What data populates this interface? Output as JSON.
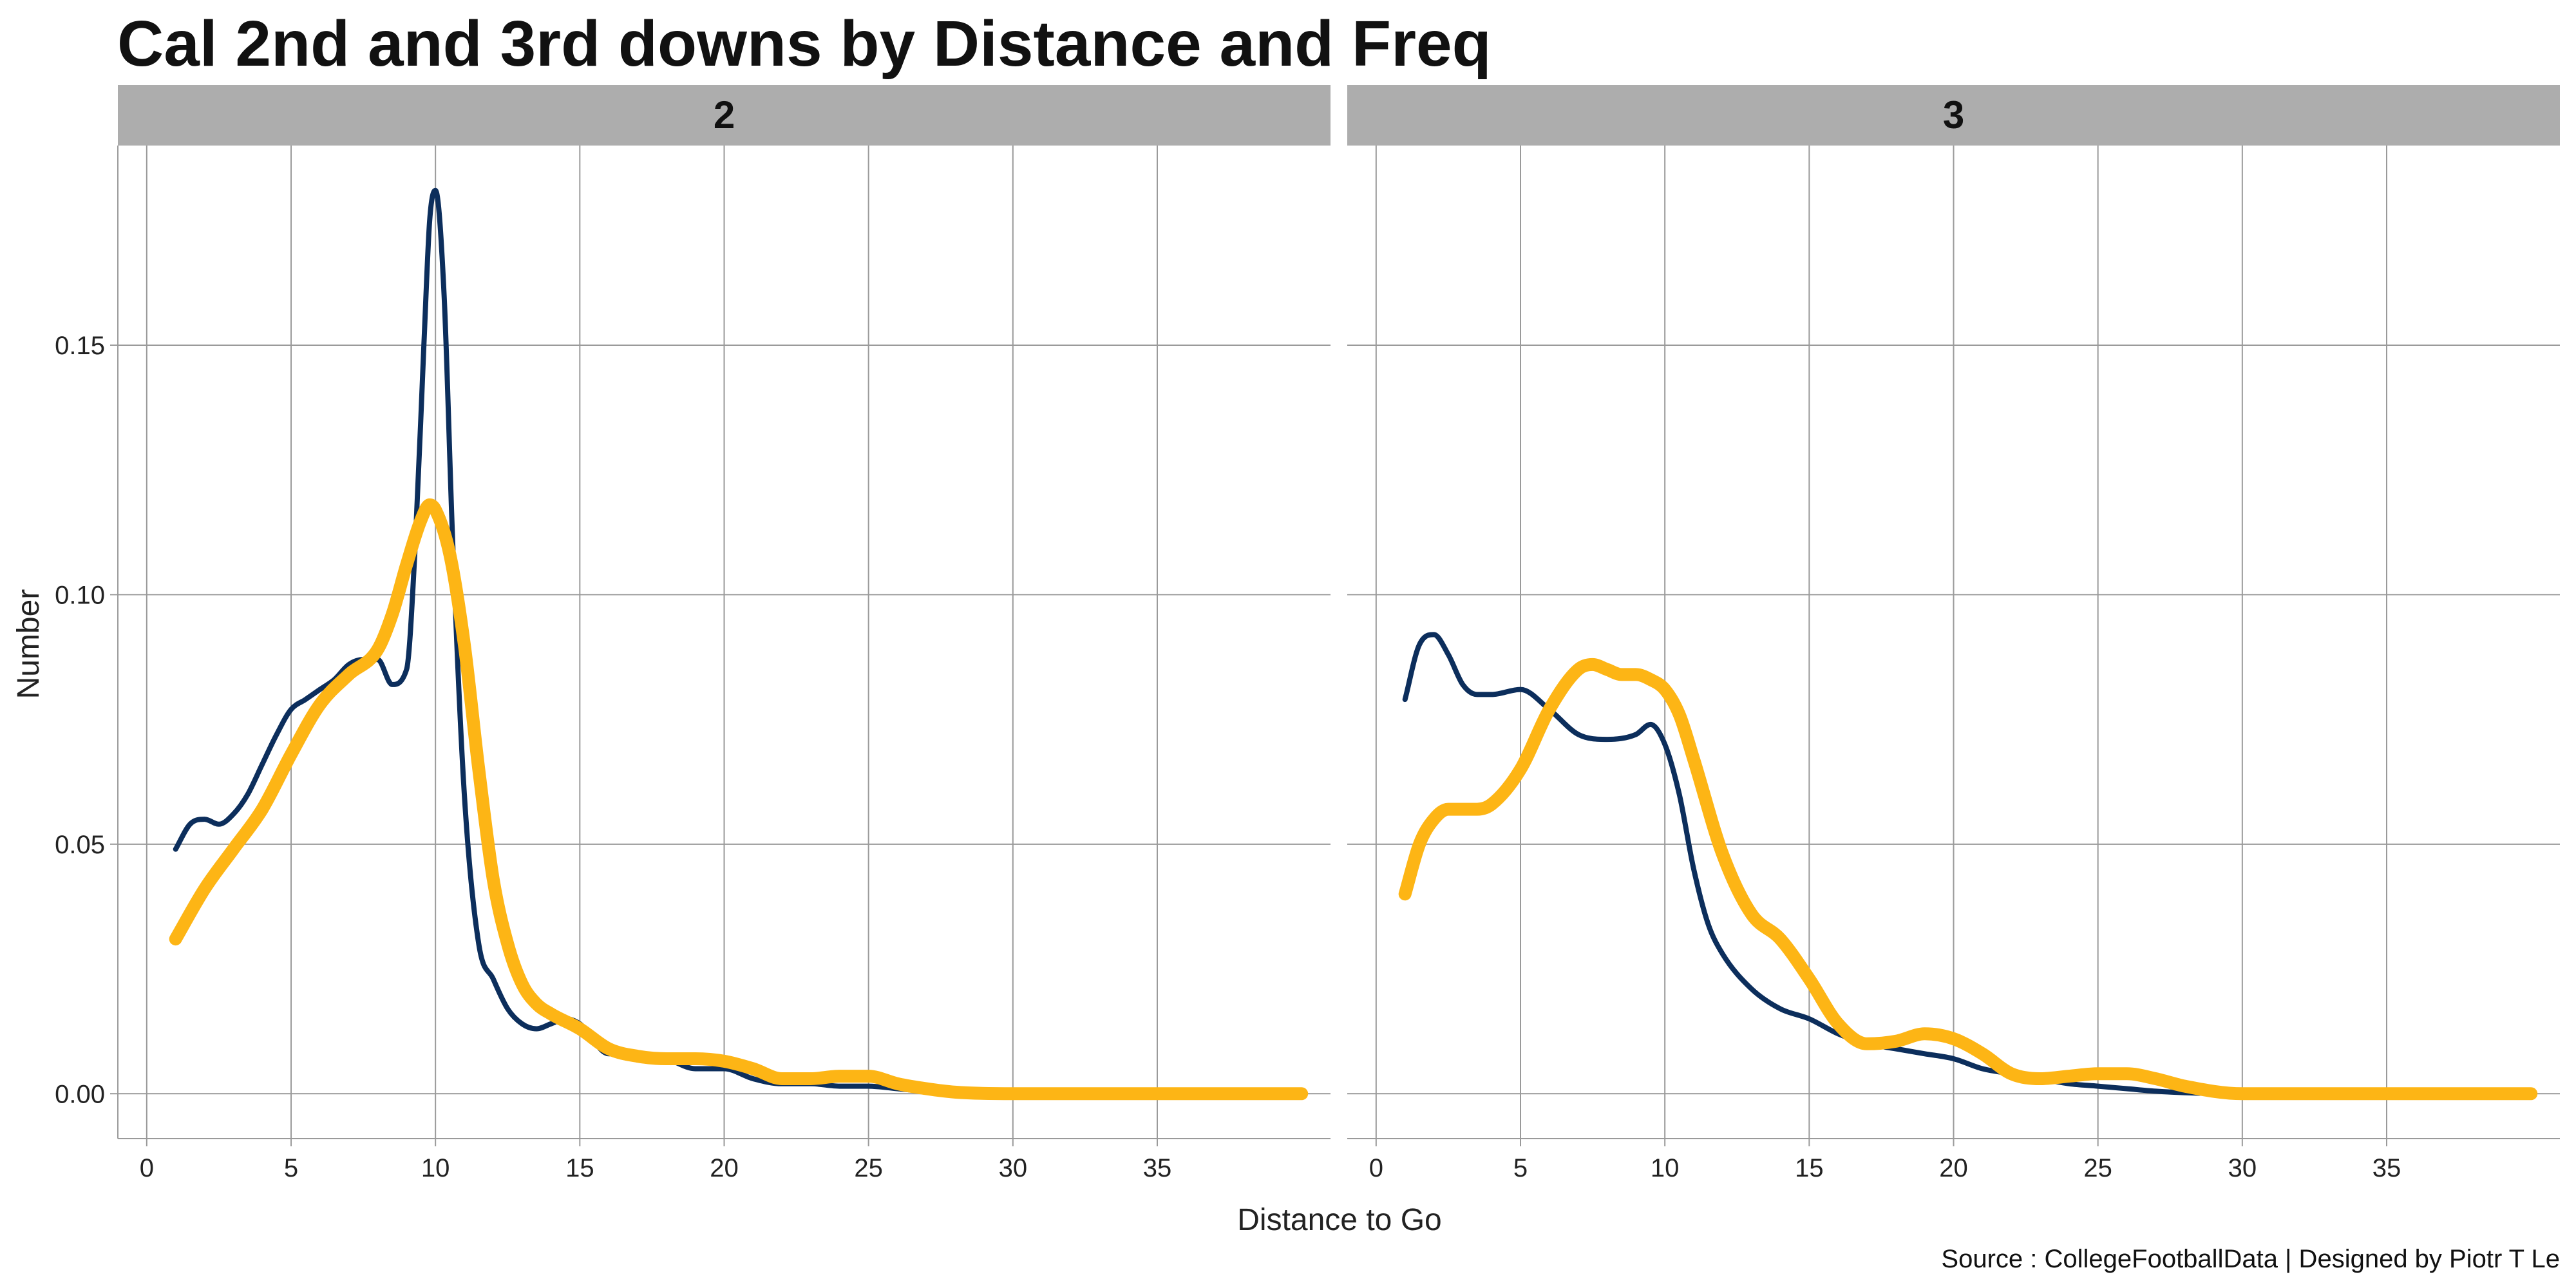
{
  "chart_data": {
    "type": "line",
    "title": "Cal 2nd and 3rd downs by Distance and Freq",
    "xlabel": "Distance to Go",
    "ylabel": "Number",
    "caption": "Source : CollegeFootballData | Designed by Piotr T Le",
    "xlim": [
      -1,
      41
    ],
    "ylim": [
      -0.009,
      0.19
    ],
    "x_ticks": [
      0,
      5,
      10,
      15,
      20,
      25,
      30,
      35
    ],
    "y_ticks": [
      0.0,
      0.05,
      0.1,
      0.15
    ],
    "x_tick_labels": [
      "0",
      "5",
      "10",
      "15",
      "20",
      "25",
      "30",
      "35"
    ],
    "y_tick_labels": [
      "0.00",
      "0.05",
      "0.10",
      "0.15"
    ],
    "series_colors": {
      "navy": "#0c2e5c",
      "gold": "#fdb515"
    },
    "panels": [
      {
        "facet_label": "2",
        "series": [
          {
            "name": "navy",
            "color": "#0c2e5c",
            "x": [
              1,
              1.5,
              2,
              2.5,
              3,
              3.5,
              4,
              4.5,
              5,
              5.5,
              6,
              6.5,
              7,
              7.5,
              8,
              8.5,
              9,
              9.3,
              9.6,
              9.8,
              10,
              10.3,
              10.6,
              11,
              11.5,
              12,
              12.5,
              13,
              13.5,
              14,
              14.5,
              15,
              16,
              17,
              18,
              19,
              20,
              21,
              22,
              23,
              24,
              25,
              26,
              27,
              28,
              30,
              35,
              40
            ],
            "y": [
              0.049,
              0.054,
              0.055,
              0.054,
              0.056,
              0.06,
              0.066,
              0.072,
              0.077,
              0.079,
              0.081,
              0.083,
              0.086,
              0.087,
              0.087,
              0.082,
              0.085,
              0.11,
              0.15,
              0.175,
              0.181,
              0.16,
              0.11,
              0.06,
              0.03,
              0.023,
              0.017,
              0.014,
              0.013,
              0.014,
              0.015,
              0.014,
              0.008,
              0.008,
              0.007,
              0.005,
              0.005,
              0.003,
              0.002,
              0.002,
              0.0015,
              0.0015,
              0.001,
              0.0005,
              0.0002,
              0,
              0,
              0
            ]
          },
          {
            "name": "gold",
            "color": "#fdb515",
            "x": [
              1,
              2,
              3,
              4,
              5,
              6,
              7,
              8,
              8.5,
              9,
              9.5,
              9.8,
              10,
              10.5,
              11,
              11.5,
              12,
              12.5,
              13,
              13.5,
              14,
              15,
              16,
              17,
              18,
              19,
              20,
              21,
              22,
              23,
              24,
              25,
              26,
              27,
              28,
              30,
              35,
              40
            ],
            "y": [
              0.031,
              0.041,
              0.049,
              0.057,
              0.068,
              0.078,
              0.084,
              0.089,
              0.096,
              0.106,
              0.115,
              0.118,
              0.117,
              0.108,
              0.09,
              0.065,
              0.043,
              0.03,
              0.022,
              0.018,
              0.016,
              0.013,
              0.009,
              0.0075,
              0.007,
              0.007,
              0.0065,
              0.005,
              0.003,
              0.003,
              0.0035,
              0.0035,
              0.002,
              0.001,
              0.0003,
              0,
              0,
              0
            ]
          }
        ]
      },
      {
        "facet_label": "3",
        "series": [
          {
            "name": "navy",
            "color": "#0c2e5c",
            "x": [
              1,
              1.5,
              2,
              2.5,
              3,
              3.5,
              4,
              5,
              6,
              7,
              8,
              9,
              9.5,
              10,
              10.5,
              11,
              11.5,
              12,
              13,
              14,
              15,
              16,
              17,
              18,
              19,
              20,
              21,
              22,
              23,
              24,
              25,
              26,
              27,
              28,
              30,
              35,
              40
            ],
            "y": [
              0.079,
              0.09,
              0.092,
              0.088,
              0.082,
              0.08,
              0.08,
              0.081,
              0.077,
              0.072,
              0.071,
              0.072,
              0.074,
              0.07,
              0.06,
              0.045,
              0.034,
              0.028,
              0.021,
              0.017,
              0.015,
              0.012,
              0.01,
              0.009,
              0.008,
              0.007,
              0.005,
              0.004,
              0.003,
              0.002,
              0.0015,
              0.001,
              0.0005,
              0.0002,
              0,
              0,
              0
            ]
          },
          {
            "name": "gold",
            "color": "#fdb515",
            "x": [
              1,
              1.5,
              2,
              2.5,
              3,
              3.5,
              4,
              5,
              6,
              7,
              7.5,
              8,
              8.5,
              9,
              9.5,
              10,
              10.5,
              11,
              12,
              13,
              14,
              15,
              16,
              17,
              18,
              19,
              20,
              21,
              22,
              23,
              24,
              25,
              26,
              27,
              28,
              30,
              35,
              40
            ],
            "y": [
              0.04,
              0.05,
              0.055,
              0.057,
              0.057,
              0.057,
              0.058,
              0.065,
              0.077,
              0.085,
              0.086,
              0.085,
              0.084,
              0.084,
              0.083,
              0.081,
              0.076,
              0.067,
              0.048,
              0.036,
              0.031,
              0.023,
              0.014,
              0.01,
              0.0105,
              0.012,
              0.011,
              0.008,
              0.004,
              0.003,
              0.0035,
              0.004,
              0.004,
              0.003,
              0.0015,
              0,
              0,
              0
            ]
          }
        ]
      }
    ]
  }
}
